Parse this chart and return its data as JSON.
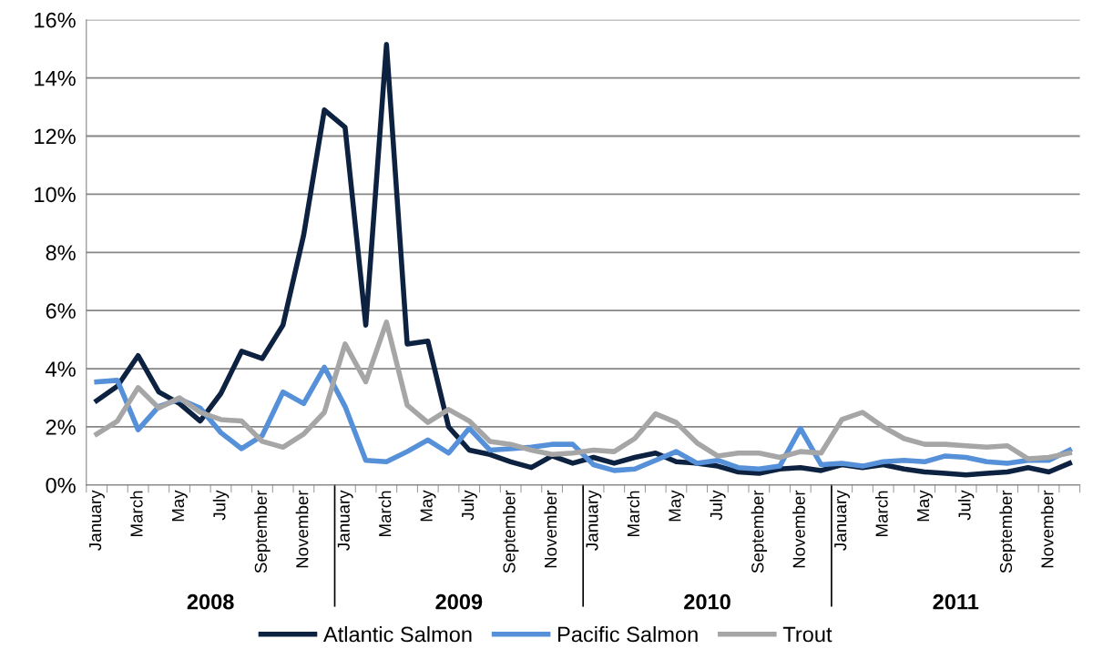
{
  "chart_data": {
    "type": "line",
    "categories": [
      "January",
      null,
      "March",
      null,
      "May",
      null,
      "July",
      null,
      "September",
      null,
      "November",
      null,
      "January",
      null,
      "March",
      null,
      "May",
      null,
      "July",
      null,
      "September",
      null,
      "November",
      null,
      "January",
      null,
      "March",
      null,
      "May",
      null,
      "July",
      null,
      "September",
      null,
      "November",
      null,
      "January",
      null,
      "March",
      null,
      "May",
      null,
      "July",
      null,
      "September",
      null,
      "November",
      null
    ],
    "series": [
      {
        "name": "Atlantic Salmon",
        "color": "#0d2240",
        "values": [
          2.9,
          3.4,
          4.45,
          3.2,
          2.8,
          2.2,
          3.15,
          4.6,
          4.35,
          5.5,
          8.6,
          12.9,
          12.3,
          5.5,
          15.15,
          4.85,
          4.95,
          2.0,
          1.2,
          1.05,
          0.8,
          0.6,
          1.0,
          0.75,
          0.95,
          0.75,
          0.95,
          1.1,
          0.8,
          0.75,
          0.65,
          0.45,
          0.4,
          0.55,
          0.6,
          0.5,
          0.7,
          0.6,
          0.7,
          0.55,
          0.45,
          0.4,
          0.35,
          0.4,
          0.45,
          0.6,
          0.45,
          0.75
        ]
      },
      {
        "name": "Pacific Salmon",
        "color": "#5590d8",
        "values": [
          3.55,
          3.6,
          1.9,
          2.7,
          2.95,
          2.65,
          1.8,
          1.25,
          1.7,
          3.2,
          2.8,
          4.05,
          2.7,
          0.85,
          0.8,
          1.15,
          1.55,
          1.1,
          1.95,
          1.2,
          1.25,
          1.3,
          1.4,
          1.4,
          0.7,
          0.5,
          0.55,
          0.85,
          1.15,
          0.75,
          0.85,
          0.6,
          0.55,
          0.65,
          1.95,
          0.7,
          0.75,
          0.65,
          0.8,
          0.85,
          0.8,
          1.0,
          0.95,
          0.8,
          0.75,
          0.85,
          0.85,
          1.2
        ]
      },
      {
        "name": "Trout",
        "color": "#a6a6a6",
        "values": [
          1.75,
          2.2,
          3.35,
          2.65,
          3.0,
          2.5,
          2.25,
          2.2,
          1.5,
          1.3,
          1.75,
          2.5,
          4.85,
          3.55,
          5.6,
          2.75,
          2.15,
          2.6,
          2.2,
          1.5,
          1.4,
          1.2,
          1.05,
          1.1,
          1.2,
          1.15,
          1.6,
          2.45,
          2.15,
          1.45,
          1.0,
          1.1,
          1.1,
          0.95,
          1.15,
          1.1,
          2.25,
          2.5,
          2.0,
          1.6,
          1.4,
          1.4,
          1.35,
          1.3,
          1.35,
          0.9,
          0.95,
          1.1
        ]
      }
    ],
    "ylim": [
      0,
      16
    ],
    "yticks": [
      {
        "value": 0,
        "label": "0%"
      },
      {
        "value": 2,
        "label": "2%"
      },
      {
        "value": 4,
        "label": "4%"
      },
      {
        "value": 6,
        "label": "6%"
      },
      {
        "value": 8,
        "label": "8%"
      },
      {
        "value": 10,
        "label": "10%"
      },
      {
        "value": 12,
        "label": "12%"
      },
      {
        "value": 14,
        "label": "14%"
      },
      {
        "value": 16,
        "label": "16%"
      }
    ],
    "annotations": [
      "2008",
      "2009",
      "2010",
      "2011"
    ],
    "grid": "y",
    "legend": "bottom",
    "marker": "none",
    "line_style": "solid"
  }
}
